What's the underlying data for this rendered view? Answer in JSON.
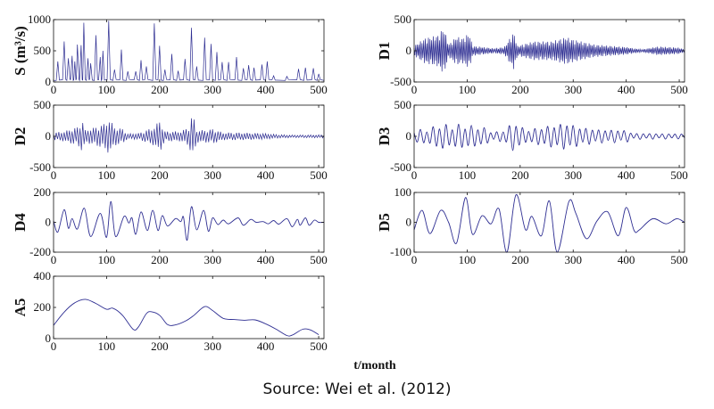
{
  "chart_data": [
    {
      "id": "S",
      "type": "line",
      "ylabel": "S (m³/s)",
      "xlim": [
        0,
        510
      ],
      "ylim": [
        0,
        1000
      ],
      "yticks": [
        0,
        500,
        1000
      ],
      "xticks": [
        0,
        100,
        200,
        300,
        400,
        500
      ],
      "mode": "peaks",
      "baseline": 25,
      "peaks": [
        [
          8,
          330
        ],
        [
          20,
          650
        ],
        [
          28,
          380
        ],
        [
          35,
          420
        ],
        [
          40,
          330
        ],
        [
          45,
          600
        ],
        [
          52,
          590
        ],
        [
          57,
          950
        ],
        [
          65,
          380
        ],
        [
          70,
          300
        ],
        [
          80,
          750
        ],
        [
          88,
          400
        ],
        [
          93,
          500
        ],
        [
          104,
          980
        ],
        [
          115,
          200
        ],
        [
          128,
          520
        ],
        [
          140,
          170
        ],
        [
          155,
          170
        ],
        [
          165,
          350
        ],
        [
          175,
          250
        ],
        [
          190,
          940
        ],
        [
          200,
          580
        ],
        [
          210,
          200
        ],
        [
          223,
          450
        ],
        [
          235,
          180
        ],
        [
          248,
          370
        ],
        [
          260,
          870
        ],
        [
          270,
          250
        ],
        [
          285,
          710
        ],
        [
          297,
          610
        ],
        [
          308,
          480
        ],
        [
          318,
          320
        ],
        [
          330,
          320
        ],
        [
          345,
          400
        ],
        [
          358,
          220
        ],
        [
          368,
          270
        ],
        [
          378,
          230
        ],
        [
          393,
          280
        ],
        [
          403,
          330
        ],
        [
          415,
          100
        ],
        [
          440,
          90
        ],
        [
          462,
          210
        ],
        [
          475,
          230
        ],
        [
          490,
          220
        ],
        [
          500,
          130
        ]
      ]
    },
    {
      "id": "D1",
      "type": "line",
      "ylabel": "D1",
      "xlim": [
        0,
        510
      ],
      "ylim": [
        -500,
        500
      ],
      "yticks": [
        -500,
        0,
        500
      ],
      "xticks": [
        0,
        100,
        200,
        300,
        400,
        500
      ],
      "mode": "oscillation",
      "period": 3,
      "envelope": [
        [
          0,
          80
        ],
        [
          20,
          200
        ],
        [
          45,
          250
        ],
        [
          56,
          380
        ],
        [
          65,
          100
        ],
        [
          80,
          230
        ],
        [
          92,
          200
        ],
        [
          104,
          290
        ],
        [
          110,
          80
        ],
        [
          150,
          40
        ],
        [
          170,
          60
        ],
        [
          188,
          300
        ],
        [
          195,
          80
        ],
        [
          225,
          150
        ],
        [
          260,
          150
        ],
        [
          287,
          220
        ],
        [
          300,
          180
        ],
        [
          340,
          100
        ],
        [
          400,
          60
        ],
        [
          430,
          20
        ],
        [
          460,
          70
        ],
        [
          500,
          50
        ],
        [
          510,
          20
        ]
      ]
    },
    {
      "id": "D2",
      "type": "line",
      "ylabel": "D2",
      "xlim": [
        0,
        510
      ],
      "ylim": [
        -500,
        500
      ],
      "yticks": [
        -500,
        0,
        500
      ],
      "xticks": [
        0,
        100,
        200,
        300,
        400,
        500
      ],
      "mode": "oscillation",
      "period": 5,
      "envelope": [
        [
          0,
          60
        ],
        [
          20,
          80
        ],
        [
          45,
          150
        ],
        [
          55,
          250
        ],
        [
          60,
          100
        ],
        [
          80,
          150
        ],
        [
          95,
          200
        ],
        [
          105,
          280
        ],
        [
          115,
          150
        ],
        [
          130,
          120
        ],
        [
          140,
          40
        ],
        [
          160,
          50
        ],
        [
          175,
          100
        ],
        [
          190,
          150
        ],
        [
          200,
          260
        ],
        [
          210,
          80
        ],
        [
          240,
          80
        ],
        [
          255,
          150
        ],
        [
          262,
          380
        ],
        [
          270,
          100
        ],
        [
          290,
          100
        ],
        [
          300,
          120
        ],
        [
          320,
          60
        ],
        [
          350,
          60
        ],
        [
          390,
          50
        ],
        [
          420,
          30
        ],
        [
          450,
          20
        ],
        [
          510,
          25
        ]
      ]
    },
    {
      "id": "D3",
      "type": "line",
      "ylabel": "D3",
      "xlim": [
        0,
        510
      ],
      "ylim": [
        -500,
        500
      ],
      "yticks": [
        -500,
        0,
        500
      ],
      "xticks": [
        0,
        100,
        200,
        300,
        400,
        500
      ],
      "mode": "oscillation",
      "period": 12,
      "envelope": [
        [
          0,
          100
        ],
        [
          30,
          130
        ],
        [
          55,
          230
        ],
        [
          65,
          150
        ],
        [
          80,
          200
        ],
        [
          105,
          180
        ],
        [
          130,
          150
        ],
        [
          150,
          60
        ],
        [
          175,
          120
        ],
        [
          188,
          260
        ],
        [
          210,
          100
        ],
        [
          260,
          180
        ],
        [
          290,
          220
        ],
        [
          310,
          150
        ],
        [
          350,
          110
        ],
        [
          400,
          100
        ],
        [
          410,
          50
        ],
        [
          510,
          40
        ]
      ]
    },
    {
      "id": "D4",
      "type": "line",
      "ylabel": "D4",
      "xlim": [
        0,
        510
      ],
      "ylim": [
        -200,
        200
      ],
      "yticks": [
        -200,
        0,
        200
      ],
      "xticks": [
        0,
        100,
        200,
        300,
        400,
        500
      ],
      "mode": "points",
      "points": [
        [
          0,
          10
        ],
        [
          8,
          -65
        ],
        [
          20,
          85
        ],
        [
          28,
          -40
        ],
        [
          35,
          25
        ],
        [
          45,
          -45
        ],
        [
          58,
          95
        ],
        [
          70,
          -95
        ],
        [
          88,
          60
        ],
        [
          100,
          -100
        ],
        [
          108,
          140
        ],
        [
          117,
          -95
        ],
        [
          133,
          40
        ],
        [
          142,
          -5
        ],
        [
          148,
          30
        ],
        [
          155,
          -80
        ],
        [
          165,
          70
        ],
        [
          177,
          -55
        ],
        [
          187,
          80
        ],
        [
          197,
          -55
        ],
        [
          205,
          45
        ],
        [
          215,
          -25
        ],
        [
          230,
          25
        ],
        [
          240,
          5
        ],
        [
          245,
          35
        ],
        [
          252,
          -120
        ],
        [
          260,
          105
        ],
        [
          270,
          -50
        ],
        [
          283,
          80
        ],
        [
          292,
          -60
        ],
        [
          300,
          30
        ],
        [
          310,
          -15
        ],
        [
          320,
          15
        ],
        [
          330,
          -10
        ],
        [
          348,
          30
        ],
        [
          358,
          -20
        ],
        [
          372,
          20
        ],
        [
          382,
          0
        ],
        [
          395,
          5
        ],
        [
          405,
          -10
        ],
        [
          415,
          12
        ],
        [
          425,
          -12
        ],
        [
          440,
          25
        ],
        [
          450,
          -30
        ],
        [
          460,
          20
        ],
        [
          465,
          -20
        ],
        [
          475,
          30
        ],
        [
          482,
          -20
        ],
        [
          492,
          15
        ],
        [
          500,
          0
        ],
        [
          510,
          0
        ]
      ]
    },
    {
      "id": "D5",
      "type": "line",
      "ylabel": "D5",
      "xlim": [
        0,
        510
      ],
      "ylim": [
        -100,
        100
      ],
      "yticks": [
        -100,
        0,
        100
      ],
      "xticks": [
        0,
        100,
        200,
        300,
        400,
        500
      ],
      "mode": "points",
      "points": [
        [
          0,
          -25
        ],
        [
          15,
          40
        ],
        [
          30,
          -38
        ],
        [
          50,
          40
        ],
        [
          65,
          0
        ],
        [
          80,
          -70
        ],
        [
          97,
          83
        ],
        [
          110,
          -40
        ],
        [
          128,
          22
        ],
        [
          145,
          -5
        ],
        [
          160,
          45
        ],
        [
          175,
          -100
        ],
        [
          192,
          92
        ],
        [
          210,
          -25
        ],
        [
          222,
          20
        ],
        [
          240,
          -45
        ],
        [
          255,
          72
        ],
        [
          270,
          -100
        ],
        [
          292,
          70
        ],
        [
          305,
          30
        ],
        [
          325,
          -55
        ],
        [
          345,
          5
        ],
        [
          365,
          35
        ],
        [
          385,
          -45
        ],
        [
          400,
          50
        ],
        [
          415,
          -28
        ],
        [
          425,
          -25
        ],
        [
          450,
          12
        ],
        [
          475,
          -5
        ],
        [
          495,
          12
        ],
        [
          510,
          0
        ]
      ]
    },
    {
      "id": "A5",
      "type": "line",
      "ylabel": "A5",
      "xlim": [
        0,
        510
      ],
      "ylim": [
        0,
        400
      ],
      "yticks": [
        0,
        200,
        400
      ],
      "xticks": [
        0,
        100,
        200,
        300,
        400,
        500
      ],
      "mode": "points",
      "xlabel": "t/month",
      "points": [
        [
          0,
          85
        ],
        [
          20,
          170
        ],
        [
          40,
          230
        ],
        [
          60,
          252
        ],
        [
          80,
          225
        ],
        [
          100,
          188
        ],
        [
          112,
          195
        ],
        [
          130,
          150
        ],
        [
          150,
          60
        ],
        [
          160,
          75
        ],
        [
          175,
          160
        ],
        [
          185,
          172
        ],
        [
          200,
          150
        ],
        [
          215,
          90
        ],
        [
          230,
          88
        ],
        [
          250,
          115
        ],
        [
          265,
          150
        ],
        [
          285,
          205
        ],
        [
          300,
          180
        ],
        [
          320,
          130
        ],
        [
          340,
          122
        ],
        [
          360,
          118
        ],
        [
          380,
          120
        ],
        [
          400,
          95
        ],
        [
          420,
          60
        ],
        [
          440,
          20
        ],
        [
          450,
          22
        ],
        [
          470,
          60
        ],
        [
          485,
          55
        ],
        [
          500,
          25
        ]
      ]
    }
  ],
  "xlabel": "t/month",
  "caption": "Source: Wei et al. (2012)",
  "colors": {
    "line": "#2e2e92",
    "axis": "#111111"
  }
}
